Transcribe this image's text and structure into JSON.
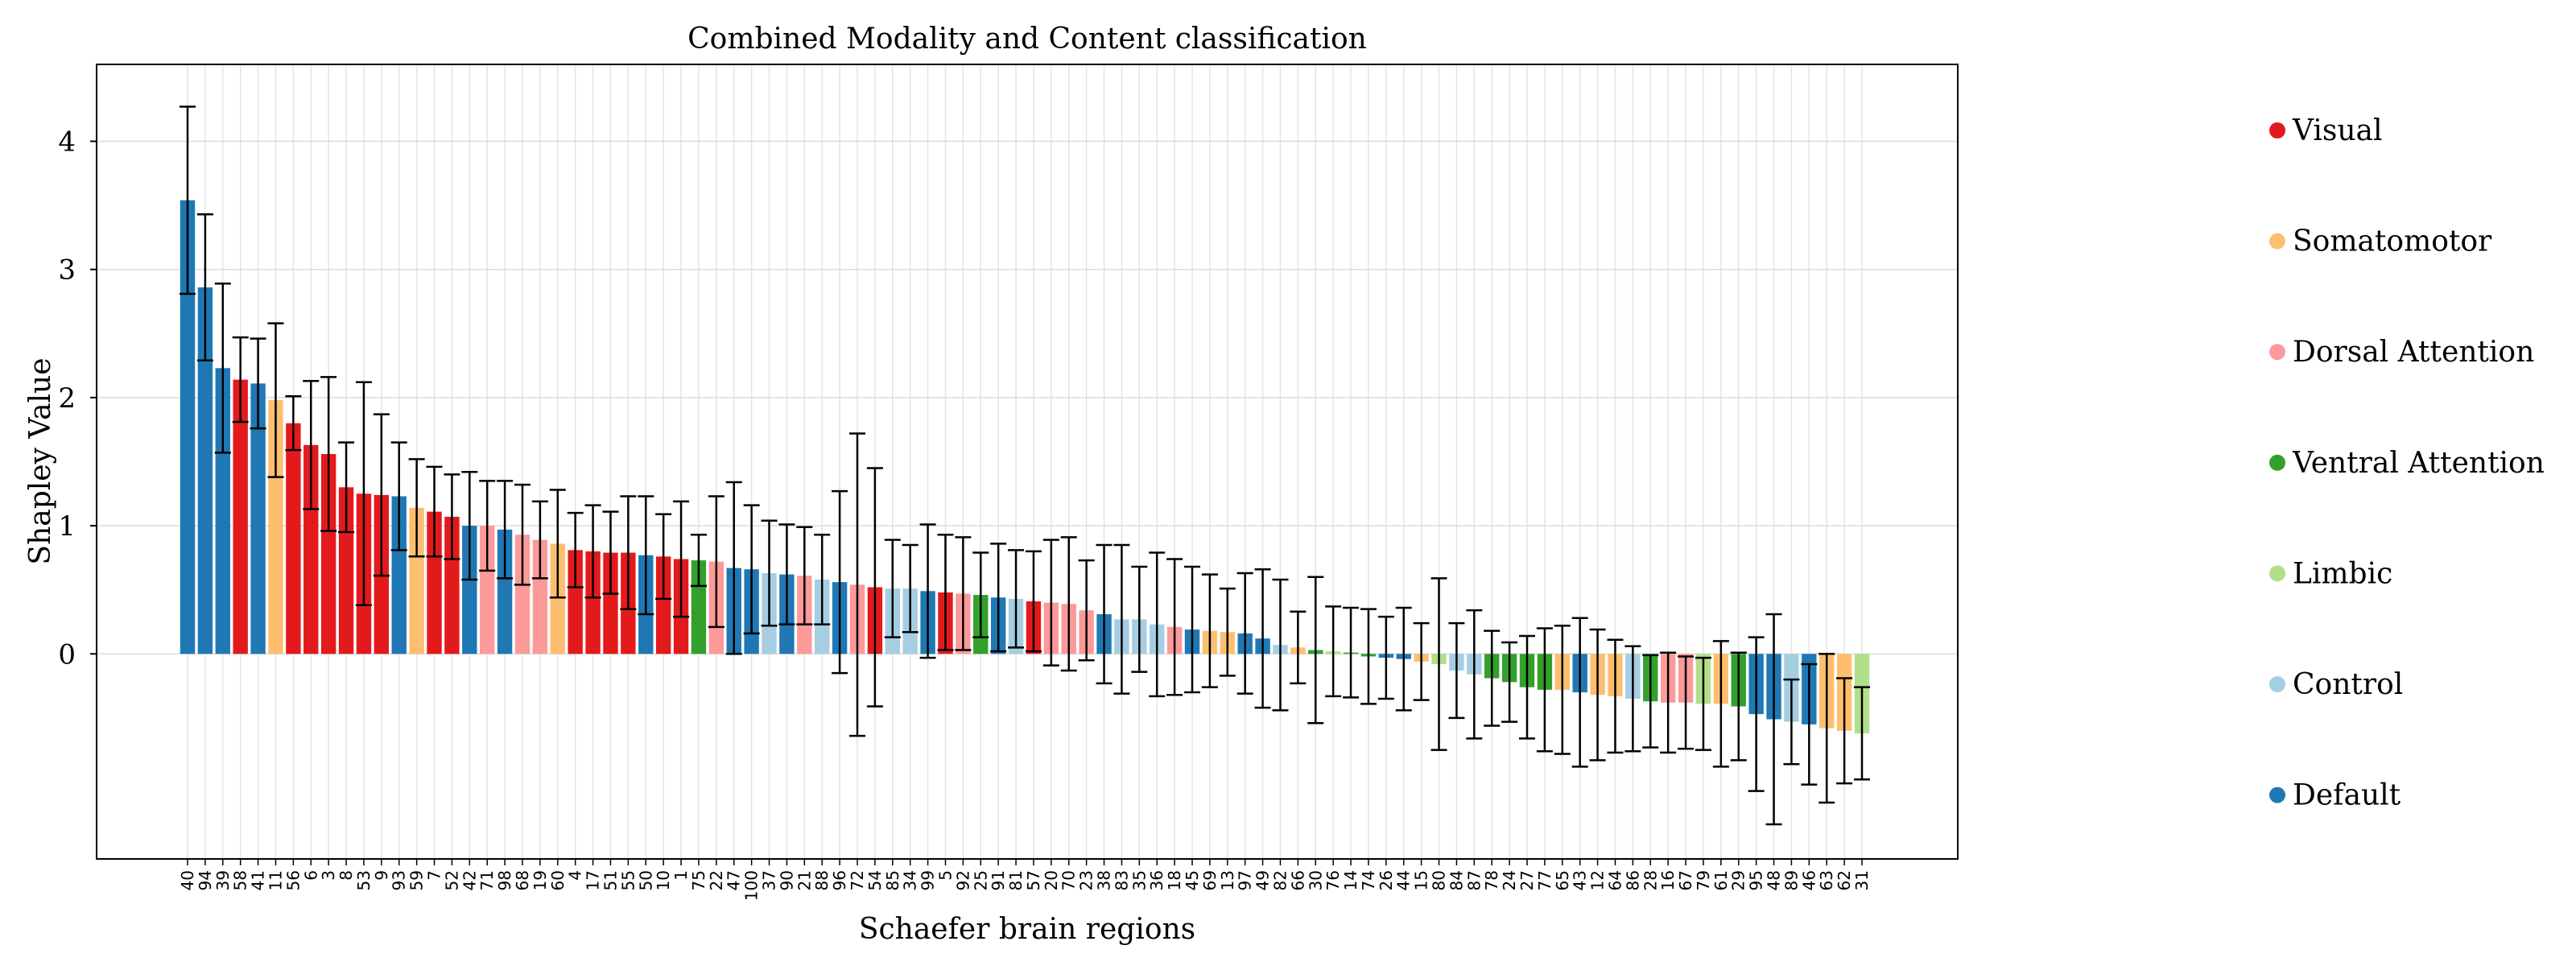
{
  "chart_data": {
    "type": "bar",
    "title": "Combined Modality and Content classification",
    "xlabel": "Schaefer brain regions",
    "ylabel": "Shapley Value",
    "ylim": [
      -1.6,
      4.6
    ],
    "yticks": [
      0,
      1,
      2,
      3,
      4
    ],
    "grid": true,
    "legend_position": "right",
    "legend": [
      {
        "name": "Visual",
        "color": "#e31a1c"
      },
      {
        "name": "Somatomotor",
        "color": "#fdbf6f"
      },
      {
        "name": "Dorsal Attention",
        "color": "#fb9a99"
      },
      {
        "name": "Ventral Attention",
        "color": "#33a02c"
      },
      {
        "name": "Limbic",
        "color": "#b2df8a"
      },
      {
        "name": "Control",
        "color": "#a6cee3"
      },
      {
        "name": "Default",
        "color": "#1f78b4"
      }
    ],
    "categories": [
      "40",
      "94",
      "39",
      "58",
      "41",
      "11",
      "56",
      "6",
      "3",
      "8",
      "53",
      "9",
      "93",
      "59",
      "7",
      "52",
      "42",
      "71",
      "98",
      "68",
      "19",
      "60",
      "4",
      "17",
      "51",
      "55",
      "50",
      "10",
      "1",
      "75",
      "22",
      "47",
      "100",
      "37",
      "90",
      "21",
      "88",
      "96",
      "72",
      "54",
      "85",
      "34",
      "99",
      "5",
      "92",
      "25",
      "91",
      "81",
      "57",
      "20",
      "70",
      "23",
      "38",
      "83",
      "35",
      "36",
      "18",
      "45",
      "69",
      "13",
      "97",
      "49",
      "82",
      "66",
      "30",
      "76",
      "14",
      "74",
      "26",
      "44",
      "15",
      "80",
      "84",
      "87",
      "78",
      "24",
      "27",
      "77",
      "65",
      "43",
      "12",
      "64",
      "86",
      "28",
      "16",
      "67",
      "79",
      "61",
      "29",
      "95",
      "48",
      "89",
      "46",
      "63",
      "62",
      "31"
    ],
    "networks": [
      "Default",
      "Default",
      "Default",
      "Visual",
      "Default",
      "Somatomotor",
      "Visual",
      "Visual",
      "Visual",
      "Visual",
      "Visual",
      "Visual",
      "Default",
      "Somatomotor",
      "Visual",
      "Visual",
      "Default",
      "Dorsal Attention",
      "Default",
      "Dorsal Attention",
      "Dorsal Attention",
      "Somatomotor",
      "Visual",
      "Visual",
      "Visual",
      "Visual",
      "Default",
      "Visual",
      "Visual",
      "Ventral Attention",
      "Dorsal Attention",
      "Default",
      "Default",
      "Control",
      "Default",
      "Dorsal Attention",
      "Control",
      "Default",
      "Dorsal Attention",
      "Visual",
      "Control",
      "Control",
      "Default",
      "Visual",
      "Dorsal Attention",
      "Ventral Attention",
      "Default",
      "Control",
      "Visual",
      "Dorsal Attention",
      "Dorsal Attention",
      "Dorsal Attention",
      "Default",
      "Control",
      "Control",
      "Control",
      "Dorsal Attention",
      "Default",
      "Somatomotor",
      "Somatomotor",
      "Default",
      "Default",
      "Control",
      "Somatomotor",
      "Ventral Attention",
      "Limbic",
      "Ventral Attention",
      "Ventral Attention",
      "Default",
      "Default",
      "Somatomotor",
      "Limbic",
      "Control",
      "Control",
      "Ventral Attention",
      "Ventral Attention",
      "Ventral Attention",
      "Ventral Attention",
      "Somatomotor",
      "Default",
      "Somatomotor",
      "Somatomotor",
      "Control",
      "Ventral Attention",
      "Dorsal Attention",
      "Dorsal Attention",
      "Limbic",
      "Somatomotor",
      "Ventral Attention",
      "Default",
      "Default",
      "Control",
      "Default",
      "Somatomotor",
      "Somatomotor",
      "Limbic"
    ],
    "values": [
      3.54,
      2.86,
      2.23,
      2.14,
      2.11,
      1.98,
      1.8,
      1.63,
      1.56,
      1.3,
      1.25,
      1.24,
      1.23,
      1.14,
      1.11,
      1.07,
      1.0,
      1.0,
      0.97,
      0.93,
      0.89,
      0.86,
      0.81,
      0.8,
      0.79,
      0.79,
      0.77,
      0.76,
      0.74,
      0.73,
      0.72,
      0.67,
      0.66,
      0.63,
      0.62,
      0.61,
      0.58,
      0.56,
      0.54,
      0.52,
      0.51,
      0.51,
      0.49,
      0.48,
      0.47,
      0.46,
      0.44,
      0.43,
      0.41,
      0.4,
      0.39,
      0.34,
      0.31,
      0.27,
      0.27,
      0.23,
      0.21,
      0.19,
      0.18,
      0.17,
      0.16,
      0.12,
      0.07,
      0.05,
      0.03,
      0.02,
      0.01,
      -0.02,
      -0.03,
      -0.04,
      -0.06,
      -0.08,
      -0.13,
      -0.16,
      -0.19,
      -0.22,
      -0.26,
      -0.28,
      -0.28,
      -0.3,
      -0.32,
      -0.33,
      -0.35,
      -0.37,
      -0.38,
      -0.38,
      -0.39,
      -0.39,
      -0.41,
      -0.47,
      -0.51,
      -0.53,
      -0.55,
      -0.58,
      -0.6,
      -0.62
    ],
    "errors": [
      0.73,
      0.57,
      0.66,
      0.33,
      0.35,
      0.6,
      0.21,
      0.5,
      0.6,
      0.35,
      0.87,
      0.63,
      0.42,
      0.38,
      0.35,
      0.33,
      0.42,
      0.35,
      0.38,
      0.39,
      0.3,
      0.42,
      0.29,
      0.36,
      0.32,
      0.44,
      0.46,
      0.33,
      0.45,
      0.2,
      0.51,
      0.67,
      0.5,
      0.41,
      0.39,
      0.38,
      0.35,
      0.71,
      1.18,
      0.93,
      0.38,
      0.34,
      0.52,
      0.45,
      0.44,
      0.33,
      0.42,
      0.38,
      0.39,
      0.49,
      0.52,
      0.39,
      0.54,
      0.58,
      0.41,
      0.56,
      0.53,
      0.49,
      0.44,
      0.34,
      0.47,
      0.54,
      0.51,
      0.28,
      0.57,
      0.35,
      0.35,
      0.37,
      0.32,
      0.4,
      0.3,
      0.67,
      0.37,
      0.5,
      0.37,
      0.31,
      0.4,
      0.48,
      0.5,
      0.58,
      0.51,
      0.44,
      0.41,
      0.36,
      0.39,
      0.36,
      0.36,
      0.49,
      0.42,
      0.6,
      0.82,
      0.33,
      0.47,
      0.58,
      0.41,
      0.36
    ]
  }
}
